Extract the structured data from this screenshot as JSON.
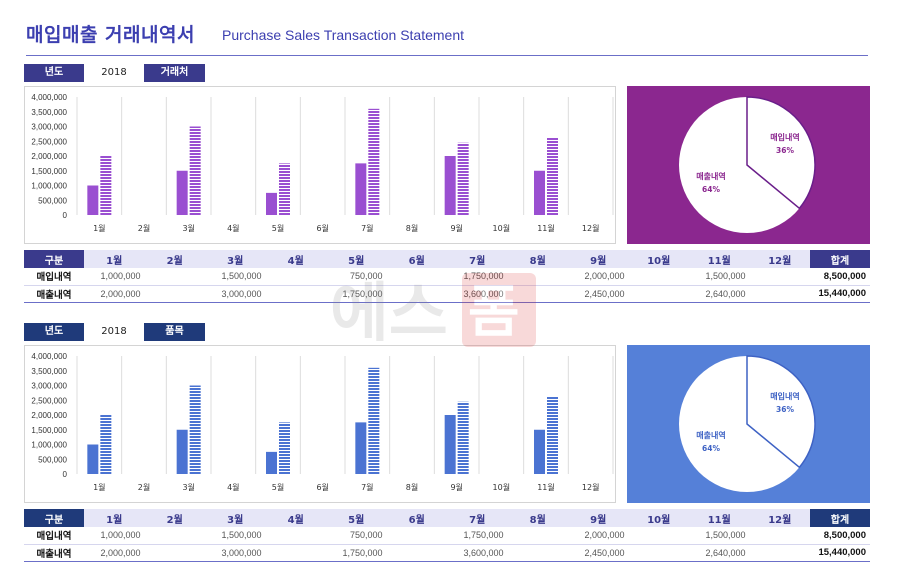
{
  "header": {
    "title_ko": "매입매출 거래내역서",
    "title_en": "Purchase Sales Transaction Statement"
  },
  "colors": {
    "accent": "#3c3fb0",
    "purchase_bar_top": "#9a4fd1",
    "sales_bar_top": "#9a4fd1",
    "pie_bg_top": "#8b278f",
    "purchase_bar_bottom": "#4b73d2",
    "sales_bar_bottom": "#4b73d2",
    "pie_bg_bottom": "#5580d8",
    "header_dark": "#3a3a8c",
    "header_light": "#e6e6f7"
  },
  "sections": [
    {
      "year_label": "년도",
      "year_value": "2018",
      "filter_label": "거래처",
      "table_header": {
        "label": "구분",
        "months": [
          "1월",
          "2월",
          "3월",
          "4월",
          "5월",
          "6월",
          "7월",
          "8월",
          "9월",
          "10월",
          "11월",
          "12월"
        ],
        "total": "합계"
      },
      "rows": [
        {
          "label": "매입내역",
          "cells": [
            "1,000,000",
            "",
            "1,500,000",
            "",
            "750,000",
            "",
            "1,750,000",
            "",
            "2,000,000",
            "",
            "1,500,000",
            ""
          ],
          "total": "8,500,000"
        },
        {
          "label": "매출내역",
          "cells": [
            "2,000,000",
            "",
            "3,000,000",
            "",
            "1,750,000",
            "",
            "3,600,000",
            "",
            "2,450,000",
            "",
            "2,640,000",
            ""
          ],
          "total": "15,440,000"
        }
      ],
      "pie": {
        "purchase_label": "매입내역",
        "purchase_pct": "36%",
        "sales_label": "매출내역",
        "sales_pct": "64%"
      }
    },
    {
      "year_label": "년도",
      "year_value": "2018",
      "filter_label": "품목",
      "table_header": {
        "label": "구분",
        "months": [
          "1월",
          "2월",
          "3월",
          "4월",
          "5월",
          "6월",
          "7월",
          "8월",
          "9월",
          "10월",
          "11월",
          "12월"
        ],
        "total": "합계"
      },
      "rows": [
        {
          "label": "매입내역",
          "cells": [
            "1,000,000",
            "",
            "1,500,000",
            "",
            "750,000",
            "",
            "1,750,000",
            "",
            "2,000,000",
            "",
            "1,500,000",
            ""
          ],
          "total": "8,500,000"
        },
        {
          "label": "매출내역",
          "cells": [
            "2,000,000",
            "",
            "3,000,000",
            "",
            "1,750,000",
            "",
            "3,600,000",
            "",
            "2,450,000",
            "",
            "2,640,000",
            ""
          ],
          "total": "15,440,000"
        }
      ],
      "pie": {
        "purchase_label": "매입내역",
        "purchase_pct": "36%",
        "sales_label": "매출내역",
        "sales_pct": "64%"
      }
    }
  ],
  "chart_data": [
    {
      "type": "bar",
      "categories": [
        "1월",
        "2월",
        "3월",
        "4월",
        "5월",
        "6월",
        "7월",
        "8월",
        "9월",
        "10월",
        "11월",
        "12월"
      ],
      "series": [
        {
          "name": "매입내역",
          "values": [
            1000000,
            0,
            1500000,
            0,
            750000,
            0,
            1750000,
            0,
            2000000,
            0,
            1500000,
            0
          ]
        },
        {
          "name": "매출내역",
          "values": [
            2000000,
            0,
            3000000,
            0,
            1750000,
            0,
            3600000,
            0,
            2450000,
            0,
            2640000,
            0
          ]
        }
      ],
      "ylim": [
        0,
        4000000
      ],
      "yticks": [
        "0",
        "500,000",
        "1,000,000",
        "1,500,000",
        "2,000,000",
        "2,500,000",
        "3,000,000",
        "3,500,000",
        "4,000,000"
      ],
      "grid": true
    },
    {
      "type": "pie",
      "categories": [
        "매입내역",
        "매출내역"
      ],
      "values": [
        36,
        64
      ]
    },
    {
      "type": "bar",
      "categories": [
        "1월",
        "2월",
        "3월",
        "4월",
        "5월",
        "6월",
        "7월",
        "8월",
        "9월",
        "10월",
        "11월",
        "12월"
      ],
      "series": [
        {
          "name": "매입내역",
          "values": [
            1000000,
            0,
            1500000,
            0,
            750000,
            0,
            1750000,
            0,
            2000000,
            0,
            1500000,
            0
          ]
        },
        {
          "name": "매출내역",
          "values": [
            2000000,
            0,
            3000000,
            0,
            1750000,
            0,
            3600000,
            0,
            2450000,
            0,
            2640000,
            0
          ]
        }
      ],
      "ylim": [
        0,
        4000000
      ],
      "yticks": [
        "0",
        "500,000",
        "1,000,000",
        "1,500,000",
        "2,000,000",
        "2,500,000",
        "3,000,000",
        "3,500,000",
        "4,000,000"
      ],
      "grid": true
    },
    {
      "type": "pie",
      "categories": [
        "매입내역",
        "매출내역"
      ],
      "values": [
        36,
        64
      ]
    }
  ],
  "watermark": {
    "text": "에스폼"
  }
}
